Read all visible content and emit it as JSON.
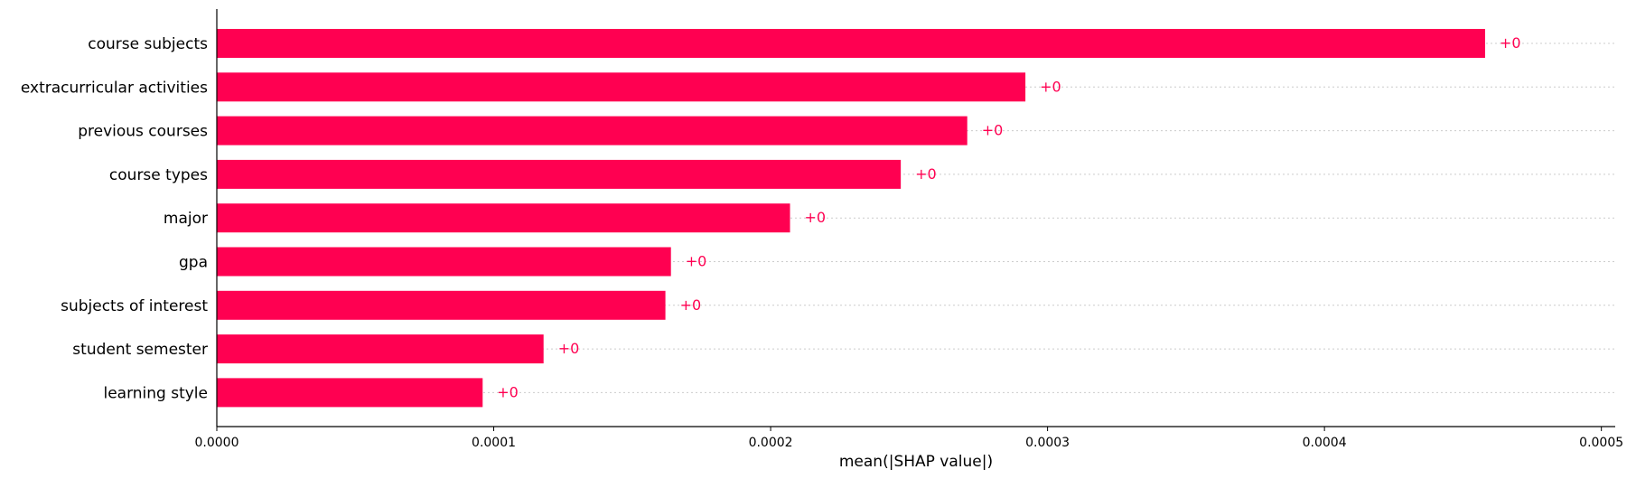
{
  "chart_data": {
    "type": "bar",
    "orientation": "horizontal",
    "title": "",
    "xlabel": "mean(|SHAP value|)",
    "ylabel": "",
    "categories": [
      "course subjects",
      "extracurricular activities",
      "previous courses",
      "course types",
      "major",
      "gpa",
      "subjects of interest",
      "student semester",
      "learning style"
    ],
    "values": [
      0.000458,
      0.000292,
      0.000271,
      0.000247,
      0.000207,
      0.000164,
      0.000162,
      0.000118,
      9.6e-05
    ],
    "data_labels": [
      "+0",
      "+0",
      "+0",
      "+0",
      "+0",
      "+0",
      "+0",
      "+0",
      "+0"
    ],
    "xlim": [
      0,
      0.000505
    ],
    "xticks": [
      0,
      0.0001,
      0.0002,
      0.0003,
      0.0004,
      0.0005
    ],
    "xtick_labels": [
      "0.0000",
      "0.0001",
      "0.0002",
      "0.0003",
      "0.0004",
      "0.0005"
    ],
    "grid": "dotted horizontal guide per bar",
    "legend": "none",
    "colors": {
      "bar": "#ff0051",
      "label": "#ff0051",
      "grid": "#cccccc",
      "axis": "#000000"
    }
  }
}
